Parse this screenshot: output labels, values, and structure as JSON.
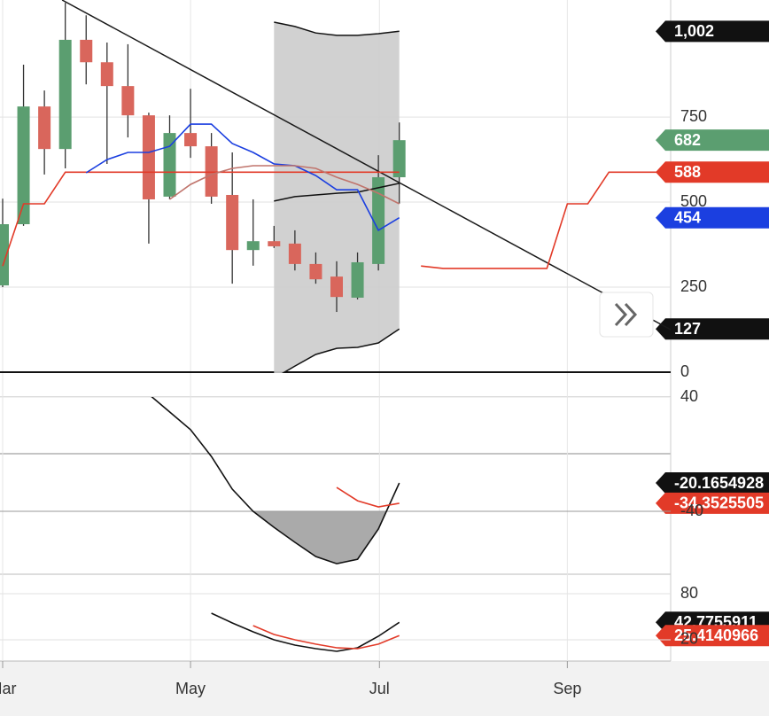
{
  "chart_data": [
    {
      "type": "candlestick",
      "xlim": [
        -0.127,
        32
      ],
      "ylim": [
        0,
        1094
      ],
      "yticks": [
        0,
        250,
        500,
        750
      ],
      "xticks": [
        {
          "value": 0,
          "label": "Mar"
        },
        {
          "value": 9,
          "label": "May"
        },
        {
          "value": 18.05,
          "label": "Jul"
        },
        {
          "value": 27.05,
          "label": "Sep"
        }
      ],
      "up_color": "#5b9e70",
      "down_color": "#d9665c",
      "grid": true,
      "x": [
        0,
        1,
        2,
        3,
        4,
        5,
        6,
        7,
        8,
        9,
        10,
        11,
        12,
        13,
        14,
        15,
        16,
        17,
        18,
        19
      ],
      "open": [
        255,
        435,
        781,
        656,
        977,
        911,
        841,
        755,
        516,
        703,
        664,
        521,
        359,
        385,
        378,
        318,
        281,
        219,
        318,
        573
      ],
      "high": [
        510,
        904,
        828,
        1086,
        1049,
        969,
        964,
        763,
        755,
        833,
        703,
        646,
        508,
        430,
        417,
        352,
        326,
        352,
        638,
        734
      ],
      "low": [
        250,
        430,
        581,
        599,
        846,
        612,
        690,
        378,
        508,
        630,
        495,
        260,
        313,
        365,
        299,
        260,
        177,
        214,
        299,
        495
      ],
      "close": [
        435,
        781,
        656,
        977,
        911,
        841,
        755,
        508,
        703,
        664,
        516,
        359,
        385,
        370,
        318,
        273,
        221,
        323,
        573,
        682
      ],
      "band": {
        "x": [
          13,
          14,
          15,
          16,
          17,
          18,
          19
        ],
        "upper": [
          1029,
          1016,
          997,
          990,
          990,
          995,
          1002
        ],
        "middle": [
          503,
          516,
          521,
          526,
          529,
          542,
          555
        ],
        "lower": [
          -18,
          18,
          52,
          70,
          73,
          86,
          127
        ],
        "color": "#111111",
        "fill": "#cccccc"
      },
      "trendline": {
        "x": [
          2.85,
          32
        ],
        "values": [
          1094,
          125
        ],
        "color": "#1a1a1a"
      },
      "series": [
        {
          "color": "#e23a28",
          "x": [
            0,
            1,
            2,
            3,
            4,
            5,
            6,
            7,
            8,
            9,
            10,
            11,
            12,
            13,
            14,
            15,
            16,
            17,
            18,
            19
          ],
          "values": [
            312,
            495,
            495,
            588,
            588,
            588,
            588,
            588,
            588,
            588,
            588,
            588,
            588,
            588,
            588,
            588,
            588,
            588,
            588,
            588
          ]
        },
        {
          "color": "#e23a28",
          "x": [
            20.04,
            21.1,
            26.07,
            27.05,
            28.03,
            29.04,
            32
          ],
          "values": [
            312,
            305,
            305,
            495,
            495,
            588,
            588
          ]
        },
        {
          "color": "#1b3fe0",
          "x": [
            4,
            5,
            6,
            7,
            8,
            9,
            10,
            11,
            12,
            13,
            14,
            15,
            16,
            17,
            18,
            19
          ],
          "values": [
            586,
            625,
            646,
            646,
            664,
            729,
            729,
            672,
            646,
            612,
            607,
            578,
            536,
            536,
            417,
            454
          ]
        },
        {
          "color": "#c0746c",
          "x": [
            8,
            9,
            10,
            11,
            12,
            13,
            14,
            15,
            16,
            17,
            18,
            19
          ],
          "values": [
            508,
            552,
            581,
            599,
            607,
            607,
            607,
            599,
            573,
            552,
            526,
            495
          ]
        }
      ],
      "tags": [
        {
          "value": 1002,
          "label": "1,002",
          "color": "#111111"
        },
        {
          "value": 682,
          "color": "#5b9e70"
        },
        {
          "value": 588,
          "color": "#e23a28"
        },
        {
          "value": 454,
          "color": "#1b3fe0"
        },
        {
          "value": 127,
          "color": "#111111"
        }
      ]
    },
    {
      "type": "line",
      "ylim": [
        -84,
        40
      ],
      "yticks": [
        40,
        -40
      ],
      "fill_below": -40,
      "fill_color": "#aaaaaa",
      "series": [
        {
          "color": "#111111",
          "x": [
            7,
            8,
            9,
            10,
            11,
            12,
            13,
            14,
            15,
            16,
            17,
            18,
            19
          ],
          "values": [
            41.9,
            29.5,
            17.1,
            -1.6,
            -24.5,
            -40,
            -51.2,
            -61.7,
            -71.6,
            -76.6,
            -73.5,
            -52.4,
            -20.1654928
          ]
        },
        {
          "color": "#e23a28",
          "x": [
            16,
            17,
            18,
            19
          ],
          "values": [
            -23.3,
            -32.6,
            -36.9,
            -34.3525505
          ]
        }
      ],
      "tags": [
        {
          "value": -20.1654928,
          "color": "#111111"
        },
        {
          "value": -34.3525505,
          "color": "#e23a28"
        }
      ]
    },
    {
      "type": "line",
      "ylim": [
        -7.7,
        105.4
      ],
      "yticks": [
        80,
        20
      ],
      "series": [
        {
          "color": "#111111",
          "x": [
            10,
            11,
            12,
            13,
            14,
            15,
            16,
            17,
            18,
            19
          ],
          "values": [
            54.6,
            41.9,
            30.4,
            20,
            13.1,
            8.5,
            5,
            9.6,
            24.6,
            42.7755911
          ]
        },
        {
          "color": "#e23a28",
          "x": [
            12,
            13,
            14,
            15,
            16,
            17,
            18,
            19
          ],
          "values": [
            38.5,
            26.9,
            20,
            14.3,
            9.6,
            8.5,
            14.3,
            25.4140966
          ]
        }
      ],
      "tags": [
        {
          "value": 42.7755911,
          "color": "#111111"
        },
        {
          "value": 25.4140966,
          "color": "#e23a28"
        }
      ]
    }
  ]
}
